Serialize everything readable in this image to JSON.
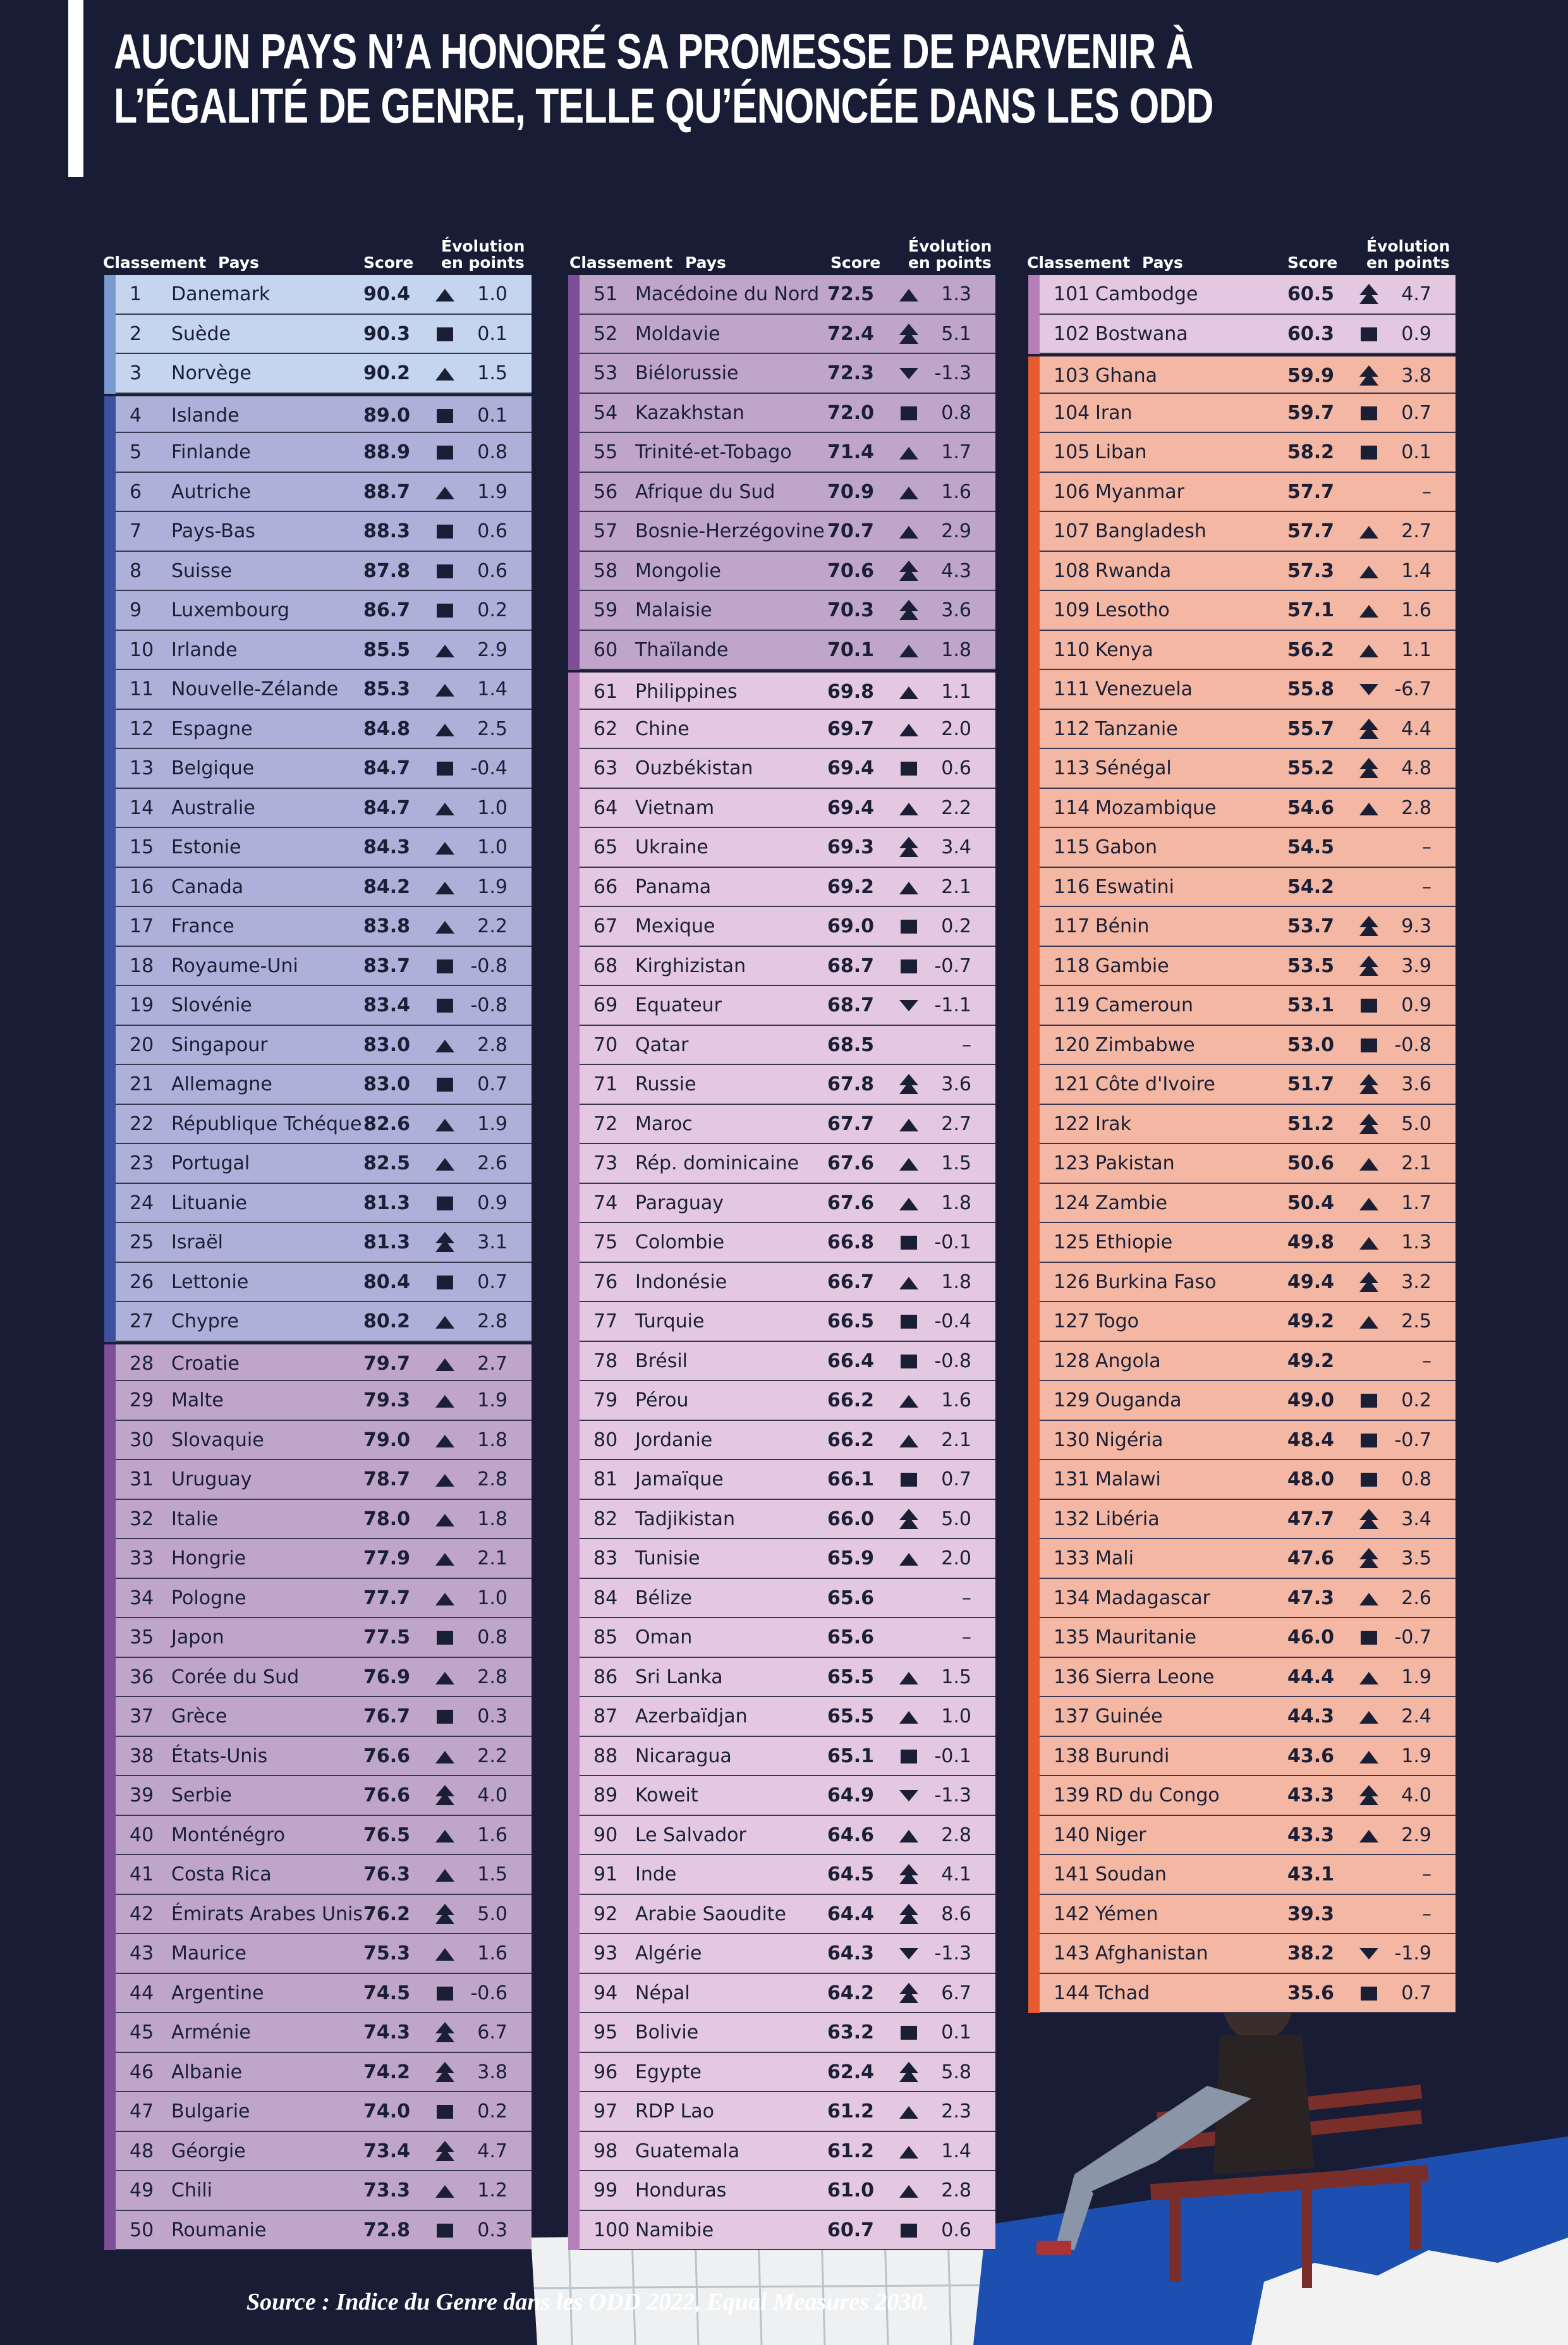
{
  "title": {
    "line1": "AUCUN PAYS N’A HONORÉ SA PROMESSE DE PARVENIR À",
    "line2": "L’ÉGALITÉ DE GENRE, TELLE QU’ÉNONCÉE DANS LES ODD"
  },
  "headers": {
    "rank": "Classement",
    "country": "Pays",
    "score": "Score",
    "evolution_line1": "Évolution",
    "evolution_line2": "en points"
  },
  "source": "Source : Indice du Genre dans les ODD 2022, Equal Measures 2030.",
  "colors": {
    "background": "#181d35",
    "text": "#1a1f35"
  },
  "tiers": [
    {
      "from": 1,
      "to": 3,
      "bg": "#c6d5ef",
      "strip": "#7b9bd0"
    },
    {
      "from": 4,
      "to": 27,
      "bg": "#adb0d9",
      "strip": "#3c50a0"
    },
    {
      "from": 28,
      "to": 60,
      "bg": "#bfa5c9",
      "strip": "#7f4e98"
    },
    {
      "from": 61,
      "to": 102,
      "bg": "#e4c8e2",
      "strip": "#b57fba"
    },
    {
      "from": 103,
      "to": 144,
      "bg": "#f4b7a4",
      "strip": "#e85a30"
    }
  ],
  "icon_legend": {
    "up": "triangle-up-icon",
    "up2": "double-triangle-up-icon",
    "sq": "square-icon",
    "down": "triangle-down-icon",
    "": "none"
  },
  "columns": [
    [
      [
        "1",
        "Danemark",
        "90.4",
        "1.0",
        "up"
      ],
      [
        "2",
        "Suède",
        "90.3",
        "0.1",
        "sq"
      ],
      [
        "3",
        "Norvège",
        "90.2",
        "1.5",
        "up"
      ],
      [
        "4",
        "Islande",
        "89.0",
        "0.1",
        "sq"
      ],
      [
        "5",
        "Finlande",
        "88.9",
        "0.8",
        "sq"
      ],
      [
        "6",
        "Autriche",
        "88.7",
        "1.9",
        "up"
      ],
      [
        "7",
        "Pays-Bas",
        "88.3",
        "0.6",
        "sq"
      ],
      [
        "8",
        "Suisse",
        "87.8",
        "0.6",
        "sq"
      ],
      [
        "9",
        "Luxembourg",
        "86.7",
        "0.2",
        "sq"
      ],
      [
        "10",
        "Irlande",
        "85.5",
        "2.9",
        "up"
      ],
      [
        "11",
        "Nouvelle-Zélande",
        "85.3",
        "1.4",
        "up"
      ],
      [
        "12",
        "Espagne",
        "84.8",
        "2.5",
        "up"
      ],
      [
        "13",
        "Belgique",
        "84.7",
        "-0.4",
        "sq"
      ],
      [
        "14",
        "Australie",
        "84.7",
        "1.0",
        "up"
      ],
      [
        "15",
        "Estonie",
        "84.3",
        "1.0",
        "up"
      ],
      [
        "16",
        "Canada",
        "84.2",
        "1.9",
        "up"
      ],
      [
        "17",
        "France",
        "83.8",
        "2.2",
        "up"
      ],
      [
        "18",
        "Royaume-Uni",
        "83.7",
        "-0.8",
        "sq"
      ],
      [
        "19",
        "Slovénie",
        "83.4",
        "-0.8",
        "sq"
      ],
      [
        "20",
        "Singapour",
        "83.0",
        "2.8",
        "up"
      ],
      [
        "21",
        "Allemagne",
        "83.0",
        "0.7",
        "sq"
      ],
      [
        "22",
        "République Tchéque",
        "82.6",
        "1.9",
        "up"
      ],
      [
        "23",
        "Portugal",
        "82.5",
        "2.6",
        "up"
      ],
      [
        "24",
        "Lituanie",
        "81.3",
        "0.9",
        "sq"
      ],
      [
        "25",
        "Israël",
        "81.3",
        "3.1",
        "up2"
      ],
      [
        "26",
        "Lettonie",
        "80.4",
        "0.7",
        "sq"
      ],
      [
        "27",
        "Chypre",
        "80.2",
        "2.8",
        "up"
      ],
      [
        "28",
        "Croatie",
        "79.7",
        "2.7",
        "up"
      ],
      [
        "29",
        "Malte",
        "79.3",
        "1.9",
        "up"
      ],
      [
        "30",
        "Slovaquie",
        "79.0",
        "1.8",
        "up"
      ],
      [
        "31",
        "Uruguay",
        "78.7",
        "2.8",
        "up"
      ],
      [
        "32",
        "Italie",
        "78.0",
        "1.8",
        "up"
      ],
      [
        "33",
        "Hongrie",
        "77.9",
        "2.1",
        "up"
      ],
      [
        "34",
        "Pologne",
        "77.7",
        "1.0",
        "up"
      ],
      [
        "35",
        "Japon",
        "77.5",
        "0.8",
        "sq"
      ],
      [
        "36",
        "Corée du Sud",
        "76.9",
        "2.8",
        "up"
      ],
      [
        "37",
        "Grèce",
        "76.7",
        "0.3",
        "sq"
      ],
      [
        "38",
        "États-Unis",
        "76.6",
        "2.2",
        "up"
      ],
      [
        "39",
        "Serbie",
        "76.6",
        "4.0",
        "up2"
      ],
      [
        "40",
        "Monténégro",
        "76.5",
        "1.6",
        "up"
      ],
      [
        "41",
        "Costa Rica",
        "76.3",
        "1.5",
        "up"
      ],
      [
        "42",
        "Émirats Arabes Unis",
        "76.2",
        "5.0",
        "up2"
      ],
      [
        "43",
        "Maurice",
        "75.3",
        "1.6",
        "up"
      ],
      [
        "44",
        "Argentine",
        "74.5",
        "-0.6",
        "sq"
      ],
      [
        "45",
        "Arménie",
        "74.3",
        "6.7",
        "up2"
      ],
      [
        "46",
        "Albanie",
        "74.2",
        "3.8",
        "up2"
      ],
      [
        "47",
        "Bulgarie",
        "74.0",
        "0.2",
        "sq"
      ],
      [
        "48",
        "Géorgie",
        "73.4",
        "4.7",
        "up2"
      ],
      [
        "49",
        "Chili",
        "73.3",
        "1.2",
        "up"
      ],
      [
        "50",
        "Roumanie",
        "72.8",
        "0.3",
        "sq"
      ]
    ],
    [
      [
        "51",
        "Macédoine du Nord",
        "72.5",
        "1.3",
        "up"
      ],
      [
        "52",
        "Moldavie",
        "72.4",
        "5.1",
        "up2"
      ],
      [
        "53",
        "Biélorussie",
        "72.3",
        "-1.3",
        "down"
      ],
      [
        "54",
        "Kazakhstan",
        "72.0",
        "0.8",
        "sq"
      ],
      [
        "55",
        "Trinité-et-Tobago",
        "71.4",
        "1.7",
        "up"
      ],
      [
        "56",
        "Afrique du Sud",
        "70.9",
        "1.6",
        "up"
      ],
      [
        "57",
        "Bosnie-Herzégovine",
        "70.7",
        "2.9",
        "up"
      ],
      [
        "58",
        "Mongolie",
        "70.6",
        "4.3",
        "up2"
      ],
      [
        "59",
        "Malaisie",
        "70.3",
        "3.6",
        "up2"
      ],
      [
        "60",
        "Thaïlande",
        "70.1",
        "1.8",
        "up"
      ],
      [
        "61",
        "Philippines",
        "69.8",
        "1.1",
        "up"
      ],
      [
        "62",
        "Chine",
        "69.7",
        "2.0",
        "up"
      ],
      [
        "63",
        "Ouzbékistan",
        "69.4",
        "0.6",
        "sq"
      ],
      [
        "64",
        "Vietnam",
        "69.4",
        "2.2",
        "up"
      ],
      [
        "65",
        "Ukraine",
        "69.3",
        "3.4",
        "up2"
      ],
      [
        "66",
        "Panama",
        "69.2",
        "2.1",
        "up"
      ],
      [
        "67",
        "Mexique",
        "69.0",
        "0.2",
        "sq"
      ],
      [
        "68",
        "Kirghizistan",
        "68.7",
        "-0.7",
        "sq"
      ],
      [
        "69",
        "Equateur",
        "68.7",
        "-1.1",
        "down"
      ],
      [
        "70",
        "Qatar",
        "68.5",
        "–",
        ""
      ],
      [
        "71",
        "Russie",
        "67.8",
        "3.6",
        "up2"
      ],
      [
        "72",
        "Maroc",
        "67.7",
        "2.7",
        "up"
      ],
      [
        "73",
        "Rép. dominicaine",
        "67.6",
        "1.5",
        "up"
      ],
      [
        "74",
        "Paraguay",
        "67.6",
        "1.8",
        "up"
      ],
      [
        "75",
        "Colombie",
        "66.8",
        "-0.1",
        "sq"
      ],
      [
        "76",
        "Indonésie",
        "66.7",
        "1.8",
        "up"
      ],
      [
        "77",
        "Turquie",
        "66.5",
        "-0.4",
        "sq"
      ],
      [
        "78",
        "Brésil",
        "66.4",
        "-0.8",
        "sq"
      ],
      [
        "79",
        "Pérou",
        "66.2",
        "1.6",
        "up"
      ],
      [
        "80",
        "Jordanie",
        "66.2",
        "2.1",
        "up"
      ],
      [
        "81",
        "Jamaïque",
        "66.1",
        "0.7",
        "sq"
      ],
      [
        "82",
        "Tadjikistan",
        "66.0",
        "5.0",
        "up2"
      ],
      [
        "83",
        "Tunisie",
        "65.9",
        "2.0",
        "up"
      ],
      [
        "84",
        "Bélize",
        "65.6",
        "–",
        ""
      ],
      [
        "85",
        "Oman",
        "65.6",
        "–",
        ""
      ],
      [
        "86",
        "Sri Lanka",
        "65.5",
        "1.5",
        "up"
      ],
      [
        "87",
        "Azerbaïdjan",
        "65.5",
        "1.0",
        "up"
      ],
      [
        "88",
        "Nicaragua",
        "65.1",
        "-0.1",
        "sq"
      ],
      [
        "89",
        "Koweit",
        "64.9",
        "-1.3",
        "down"
      ],
      [
        "90",
        "Le Salvador",
        "64.6",
        "2.8",
        "up"
      ],
      [
        "91",
        "Inde",
        "64.5",
        "4.1",
        "up2"
      ],
      [
        "92",
        "Arabie Saoudite",
        "64.4",
        "8.6",
        "up2"
      ],
      [
        "93",
        "Algérie",
        "64.3",
        "-1.3",
        "down"
      ],
      [
        "94",
        "Népal",
        "64.2",
        "6.7",
        "up2"
      ],
      [
        "95",
        "Bolivie",
        "63.2",
        "0.1",
        "sq"
      ],
      [
        "96",
        "Egypte",
        "62.4",
        "5.8",
        "up2"
      ],
      [
        "97",
        "RDP Lao",
        "61.2",
        "2.3",
        "up"
      ],
      [
        "98",
        "Guatemala",
        "61.2",
        "1.4",
        "up"
      ],
      [
        "99",
        "Honduras",
        "61.0",
        "2.8",
        "up"
      ],
      [
        "100",
        "Namibie",
        "60.7",
        "0.6",
        "sq"
      ]
    ],
    [
      [
        "101",
        "Cambodge",
        "60.5",
        "4.7",
        "up2"
      ],
      [
        "102",
        "Bostwana",
        "60.3",
        "0.9",
        "sq"
      ],
      [
        "103",
        "Ghana",
        "59.9",
        "3.8",
        "up2"
      ],
      [
        "104",
        "Iran",
        "59.7",
        "0.7",
        "sq"
      ],
      [
        "105",
        "Liban",
        "58.2",
        "0.1",
        "sq"
      ],
      [
        "106",
        "Myanmar",
        "57.7",
        "–",
        ""
      ],
      [
        "107",
        "Bangladesh",
        "57.7",
        "2.7",
        "up"
      ],
      [
        "108",
        "Rwanda",
        "57.3",
        "1.4",
        "up"
      ],
      [
        "109",
        "Lesotho",
        "57.1",
        "1.6",
        "up"
      ],
      [
        "110",
        "Kenya",
        "56.2",
        "1.1",
        "up"
      ],
      [
        "111",
        "Venezuela",
        "55.8",
        "-6.7",
        "down"
      ],
      [
        "112",
        "Tanzanie",
        "55.7",
        "4.4",
        "up2"
      ],
      [
        "113",
        "Sénégal",
        "55.2",
        "4.8",
        "up2"
      ],
      [
        "114",
        "Mozambique",
        "54.6",
        "2.8",
        "up"
      ],
      [
        "115",
        "Gabon",
        "54.5",
        "–",
        ""
      ],
      [
        "116",
        "Eswatini",
        "54.2",
        "–",
        ""
      ],
      [
        "117",
        "Bénin",
        "53.7",
        "9.3",
        "up2"
      ],
      [
        "118",
        "Gambie",
        "53.5",
        "3.9",
        "up2"
      ],
      [
        "119",
        "Cameroun",
        "53.1",
        "0.9",
        "sq"
      ],
      [
        "120",
        "Zimbabwe",
        "53.0",
        "-0.8",
        "sq"
      ],
      [
        "121",
        "Côte d'Ivoire",
        "51.7",
        "3.6",
        "up2"
      ],
      [
        "122",
        "Irak",
        "51.2",
        "5.0",
        "up2"
      ],
      [
        "123",
        "Pakistan",
        "50.6",
        "2.1",
        "up"
      ],
      [
        "124",
        "Zambie",
        "50.4",
        "1.7",
        "up"
      ],
      [
        "125",
        "Ethiopie",
        "49.8",
        "1.3",
        "up"
      ],
      [
        "126",
        "Burkina Faso",
        "49.4",
        "3.2",
        "up2"
      ],
      [
        "127",
        "Togo",
        "49.2",
        "2.5",
        "up"
      ],
      [
        "128",
        "Angola",
        "49.2",
        "–",
        ""
      ],
      [
        "129",
        "Ouganda",
        "49.0",
        "0.2",
        "sq"
      ],
      [
        "130",
        "Nigéria",
        "48.4",
        "-0.7",
        "sq"
      ],
      [
        "131",
        "Malawi",
        "48.0",
        "0.8",
        "sq"
      ],
      [
        "132",
        "Libéria",
        "47.7",
        "3.4",
        "up2"
      ],
      [
        "133",
        "Mali",
        "47.6",
        "3.5",
        "up2"
      ],
      [
        "134",
        "Madagascar",
        "47.3",
        "2.6",
        "up"
      ],
      [
        "135",
        "Mauritanie",
        "46.0",
        "-0.7",
        "sq"
      ],
      [
        "136",
        "Sierra Leone",
        "44.4",
        "1.9",
        "up"
      ],
      [
        "137",
        "Guinée",
        "44.3",
        "2.4",
        "up"
      ],
      [
        "138",
        "Burundi",
        "43.6",
        "1.9",
        "up"
      ],
      [
        "139",
        "RD du Congo",
        "43.3",
        "4.0",
        "up2"
      ],
      [
        "140",
        "Niger",
        "43.3",
        "2.9",
        "up"
      ],
      [
        "141",
        "Soudan",
        "43.1",
        "–",
        ""
      ],
      [
        "142",
        "Yémen",
        "39.3",
        "–",
        ""
      ],
      [
        "143",
        "Afghanistan",
        "38.2",
        "-1.9",
        "down"
      ],
      [
        "144",
        "Tchad",
        "35.6",
        "0.7",
        "sq"
      ]
    ]
  ]
}
